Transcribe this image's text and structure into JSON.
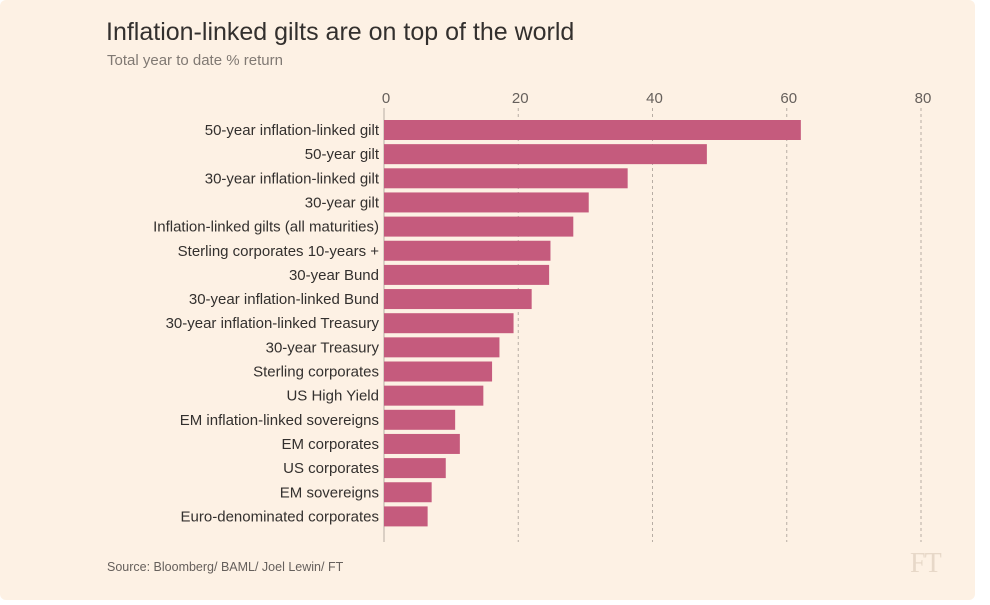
{
  "title": "Inflation-linked gilts are on top of the world",
  "subtitle": "Total year to date % return",
  "source": "Source: Bloomberg/ BAML/ Joel Lewin/ FT",
  "logo": "FT",
  "colors": {
    "bar": "#c55b7d",
    "background": "#fdf1e4",
    "grid": "#b7ada4",
    "text": "#33302e"
  },
  "chart_data": {
    "type": "bar",
    "orientation": "horizontal",
    "title": "Inflation-linked gilts are on top of the world",
    "subtitle": "Total year to date % return",
    "xlabel": "",
    "ylabel": "",
    "xlim": [
      0,
      80
    ],
    "x_ticks": [
      0,
      20,
      40,
      60,
      80
    ],
    "x_axis_position": "top",
    "grid": "vertical dashed",
    "categories": [
      "50-year inflation-linked gilt",
      "50-year gilt",
      "30-year inflation-linked gilt",
      "30-year gilt",
      "Inflation-linked gilts (all maturities)",
      "Sterling corporates 10-years +",
      "30-year Bund",
      "30-year inflation-linked Bund",
      "30-year inflation-linked Treasury",
      "30-year Treasury",
      "Sterling corporates",
      "US High Yield",
      "EM inflation-linked sovereigns",
      "EM corporates",
      "US corporates",
      "EM sovereigns",
      "Euro-denominated corporates"
    ],
    "values": [
      62.1,
      48.1,
      36.3,
      30.5,
      28.2,
      24.8,
      24.6,
      22.0,
      19.3,
      17.2,
      16.1,
      14.8,
      10.6,
      11.3,
      9.2,
      7.1,
      6.5
    ]
  }
}
